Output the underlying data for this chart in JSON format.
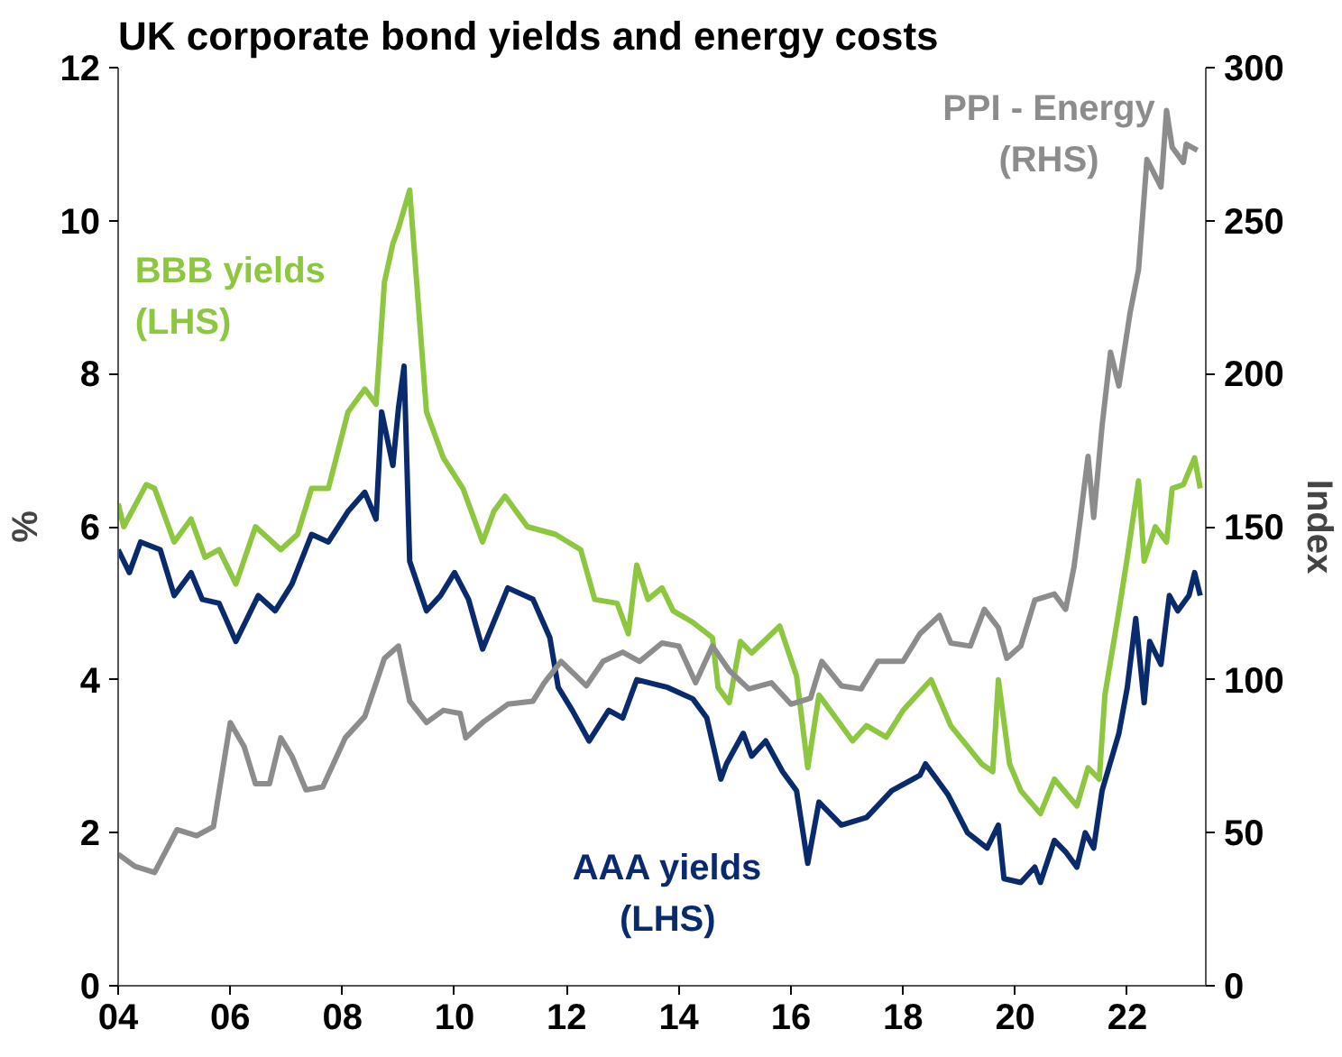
{
  "chart_data": {
    "type": "line",
    "title": "UK corporate bond yields and energy costs",
    "ylabel": "%",
    "y2label": "Index",
    "xlim": [
      2004,
      2023.4
    ],
    "xticks": [
      {
        "value": 2004,
        "label": "04"
      },
      {
        "value": 2006,
        "label": "06"
      },
      {
        "value": 2008,
        "label": "08"
      },
      {
        "value": 2010,
        "label": "10"
      },
      {
        "value": 2012,
        "label": "12"
      },
      {
        "value": 2014,
        "label": "14"
      },
      {
        "value": 2016,
        "label": "16"
      },
      {
        "value": 2018,
        "label": "18"
      },
      {
        "value": 2020,
        "label": "20"
      },
      {
        "value": 2022,
        "label": "22"
      }
    ],
    "ylim": [
      0,
      12
    ],
    "yticks": [
      0,
      2,
      4,
      6,
      8,
      10,
      12
    ],
    "y2lim": [
      0,
      300
    ],
    "y2ticks": [
      0,
      50,
      100,
      150,
      200,
      250,
      300
    ],
    "grid": false,
    "legend": false,
    "series": [
      {
        "name": "BBB yields\n(LHS)",
        "color": "#8dc63f",
        "x": [
          2004.0,
          2004.1,
          2004.5,
          2004.65,
          2005.0,
          2005.3,
          2005.55,
          2005.8,
          2006.1,
          2006.45,
          2006.9,
          2007.2,
          2007.45,
          2007.75,
          2008.1,
          2008.4,
          2008.6,
          2008.75,
          2008.9,
          2009.0,
          2009.2,
          2009.5,
          2009.8,
          2010.15,
          2010.5,
          2010.7,
          2010.9,
          2011.3,
          2011.8,
          2012.25,
          2012.5,
          2012.9,
          2013.1,
          2013.25,
          2013.45,
          2013.7,
          2013.9,
          2014.25,
          2014.6,
          2014.7,
          2014.9,
          2015.1,
          2015.3,
          2015.8,
          2016.1,
          2016.3,
          2016.5,
          2016.8,
          2017.1,
          2017.35,
          2017.7,
          2018.0,
          2018.5,
          2018.85,
          2019.4,
          2019.6,
          2019.7,
          2019.9,
          2020.1,
          2020.45,
          2020.7,
          2021.1,
          2021.3,
          2021.5,
          2021.6,
          2021.85,
          2022.0,
          2022.2,
          2022.3,
          2022.5,
          2022.7,
          2022.8,
          2023.0,
          2023.2,
          2023.3
        ],
        "values": [
          6.3,
          6.0,
          6.55,
          6.5,
          5.8,
          6.1,
          5.6,
          5.7,
          5.25,
          6.0,
          5.7,
          5.9,
          6.5,
          6.5,
          7.5,
          7.8,
          7.6,
          9.2,
          9.7,
          9.9,
          10.4,
          7.5,
          6.9,
          6.5,
          5.8,
          6.2,
          6.4,
          6.0,
          5.9,
          5.7,
          5.05,
          5.0,
          4.6,
          5.5,
          5.05,
          5.2,
          4.9,
          4.75,
          4.55,
          3.9,
          3.7,
          4.5,
          4.35,
          4.7,
          4.05,
          2.85,
          3.8,
          3.5,
          3.2,
          3.4,
          3.25,
          3.6,
          4.0,
          3.4,
          2.9,
          2.8,
          4.0,
          2.9,
          2.55,
          2.25,
          2.7,
          2.35,
          2.85,
          2.7,
          3.8,
          4.9,
          5.6,
          6.6,
          5.55,
          6.0,
          5.8,
          6.5,
          6.55,
          6.9,
          6.5
        ]
      },
      {
        "name": "AAA yields\n(LHS)",
        "color": "#0a2a6e",
        "x": [
          2004.0,
          2004.2,
          2004.4,
          2004.75,
          2005.0,
          2005.3,
          2005.5,
          2005.8,
          2006.1,
          2006.5,
          2006.8,
          2007.1,
          2007.45,
          2007.75,
          2008.1,
          2008.4,
          2008.6,
          2008.7,
          2008.9,
          2009.0,
          2009.1,
          2009.2,
          2009.5,
          2009.75,
          2010.0,
          2010.25,
          2010.5,
          2010.95,
          2011.4,
          2011.7,
          2011.85,
          2012.1,
          2012.4,
          2012.75,
          2013.0,
          2013.25,
          2013.8,
          2014.25,
          2014.5,
          2014.75,
          2014.85,
          2015.15,
          2015.3,
          2015.55,
          2015.85,
          2016.1,
          2016.3,
          2016.5,
          2016.9,
          2017.35,
          2017.8,
          2018.3,
          2018.4,
          2018.8,
          2019.15,
          2019.5,
          2019.7,
          2019.8,
          2020.1,
          2020.35,
          2020.45,
          2020.7,
          2020.9,
          2021.1,
          2021.25,
          2021.4,
          2021.55,
          2021.85,
          2022.0,
          2022.15,
          2022.3,
          2022.4,
          2022.6,
          2022.75,
          2022.9,
          2023.1,
          2023.2,
          2023.3
        ],
        "values": [
          5.7,
          5.4,
          5.8,
          5.7,
          5.1,
          5.4,
          5.05,
          5.0,
          4.5,
          5.1,
          4.9,
          5.25,
          5.9,
          5.8,
          6.2,
          6.45,
          6.1,
          7.5,
          6.8,
          7.55,
          8.1,
          5.55,
          4.9,
          5.1,
          5.4,
          5.05,
          4.4,
          5.2,
          5.05,
          4.55,
          3.9,
          3.6,
          3.2,
          3.6,
          3.5,
          4.0,
          3.9,
          3.75,
          3.5,
          2.7,
          2.9,
          3.3,
          3.0,
          3.2,
          2.8,
          2.55,
          1.6,
          2.4,
          2.1,
          2.2,
          2.55,
          2.75,
          2.9,
          2.5,
          2.0,
          1.8,
          2.1,
          1.4,
          1.35,
          1.55,
          1.35,
          1.9,
          1.75,
          1.55,
          2.0,
          1.8,
          2.55,
          3.3,
          3.9,
          4.8,
          3.7,
          4.5,
          4.2,
          5.1,
          4.9,
          5.1,
          5.4,
          5.1
        ]
      },
      {
        "name": "PPI - Energy\n(RHS)",
        "color": "#8c8c8c",
        "axis": "y2",
        "x": [
          2004.0,
          2004.3,
          2004.65,
          2005.05,
          2005.4,
          2005.7,
          2006.0,
          2006.25,
          2006.45,
          2006.7,
          2006.9,
          2007.1,
          2007.35,
          2007.65,
          2008.05,
          2008.4,
          2008.75,
          2009.0,
          2009.2,
          2009.5,
          2009.8,
          2010.1,
          2010.2,
          2010.5,
          2010.95,
          2011.4,
          2011.6,
          2011.9,
          2012.35,
          2012.65,
          2013.0,
          2013.3,
          2013.7,
          2014.0,
          2014.3,
          2014.6,
          2014.9,
          2015.25,
          2015.65,
          2016.0,
          2016.35,
          2016.55,
          2016.9,
          2017.25,
          2017.55,
          2018.0,
          2018.3,
          2018.65,
          2018.85,
          2019.2,
          2019.45,
          2019.7,
          2019.85,
          2020.1,
          2020.35,
          2020.7,
          2020.9,
          2021.05,
          2021.15,
          2021.3,
          2021.4,
          2021.55,
          2021.7,
          2021.85,
          2022.05,
          2022.2,
          2022.35,
          2022.6,
          2022.7,
          2022.8,
          2023.0,
          2023.05,
          2023.25
        ],
        "values": [
          43,
          39,
          37,
          51,
          49,
          52,
          86,
          78,
          66,
          66,
          81,
          75,
          64,
          65,
          81,
          88,
          107,
          111,
          93,
          86,
          90,
          89,
          81,
          86,
          92,
          93,
          99,
          106,
          98,
          106,
          109,
          106,
          112,
          111,
          99,
          111,
          103,
          97,
          99,
          92,
          94,
          106,
          98,
          97,
          106,
          106,
          115,
          121,
          112,
          111,
          123,
          117,
          107,
          111,
          126,
          128,
          123,
          137,
          151,
          173,
          153,
          183,
          207,
          196,
          220,
          234,
          270,
          261,
          286,
          274,
          269,
          275,
          273
        ]
      }
    ]
  }
}
